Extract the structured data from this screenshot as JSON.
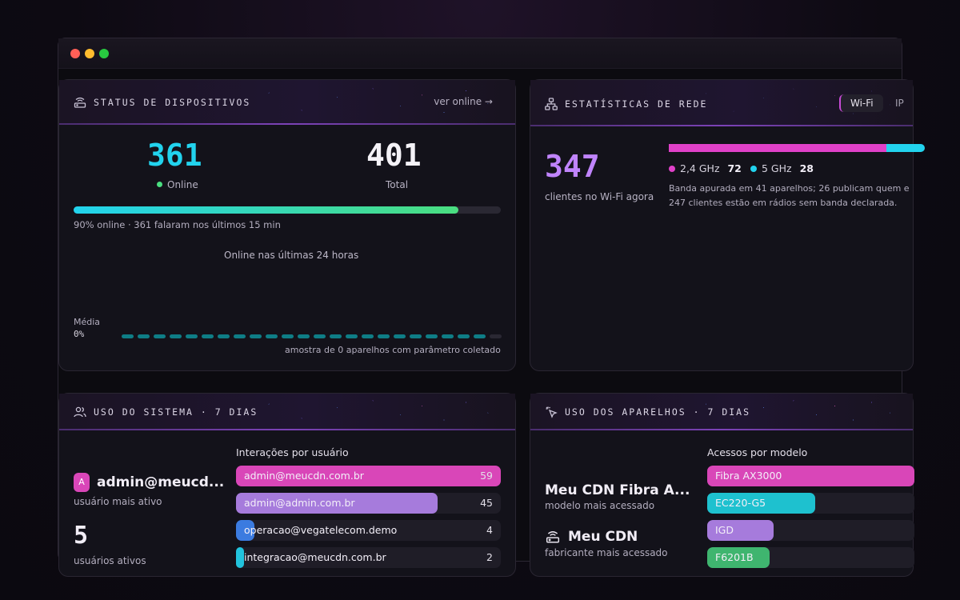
{
  "device_status": {
    "title": "STATUS DE DISPOSITIVOS",
    "link": "ver online →",
    "online_value": "361",
    "online_label": "Online",
    "total_value": "401",
    "total_label": "Total",
    "online_fraction": 0.9,
    "progress_caption": "90% online · 361 falaram nos últimos 15 min",
    "chart_title": "Online nas últimas 24 horas",
    "avg_label": "Média",
    "avg_value": "0%",
    "sample_note": "amostra de 0 aparelhos com parâmetro coletado"
  },
  "network_stats": {
    "title": "ESTATÍSTICAS DE REDE",
    "tabs": [
      {
        "label": "Wi-Fi"
      },
      {
        "label": "IP"
      }
    ],
    "clients_value": "347",
    "clients_label": "clientes no Wi-Fi agora",
    "band_24_label": "2,4 GHz",
    "band_24_value": "72",
    "band_5_label": "5 GHz",
    "band_5_value": "28",
    "note_line1": "Banda apurada em 41 aparelhos; 26 publicam quem e",
    "note_line2": "247 clientes estão em rádios sem banda declarada."
  },
  "system_usage": {
    "title": "USO DO SISTEMA · 7 DIAS",
    "avatar_letter": "A",
    "top_user": "admin@meucd...",
    "top_user_label": "usuário mais ativo",
    "active_users_value": "5",
    "active_users_label": "usuários ativos",
    "interactions_title": "Interações por usuário",
    "interactions": [
      {
        "user": "admin@meucdn.com.br",
        "value": "59",
        "fraction": 1.0,
        "color": "#d946b8"
      },
      {
        "user": "admin@admin.com.br",
        "value": "45",
        "fraction": 0.76,
        "color": "#a67bdc"
      },
      {
        "user": "operacao@vegatelecom.demo",
        "value": "4",
        "fraction": 0.07,
        "color": "#3b7be0"
      },
      {
        "user": "integracao@meucdn.com.br",
        "value": "2",
        "fraction": 0.03,
        "color": "#22c3dd"
      }
    ]
  },
  "device_usage": {
    "title": "USO DOS APARELHOS · 7 DIAS",
    "top_model": "Meu CDN Fibra A...",
    "top_model_label": "modelo mais acessado",
    "top_vendor": "Meu CDN",
    "top_vendor_label": "fabricante mais acessado",
    "models_title": "Acessos por modelo",
    "models": [
      {
        "name": "Fibra AX3000",
        "fraction": 1.0,
        "color": "#d946b8"
      },
      {
        "name": "EC220-G5",
        "fraction": 0.52,
        "color": "#1ec1cf"
      },
      {
        "name": "IGD",
        "fraction": 0.32,
        "color": "#a67bdc"
      },
      {
        "name": "F6201B",
        "fraction": 0.3,
        "color": "#3fb56f"
      }
    ]
  }
}
